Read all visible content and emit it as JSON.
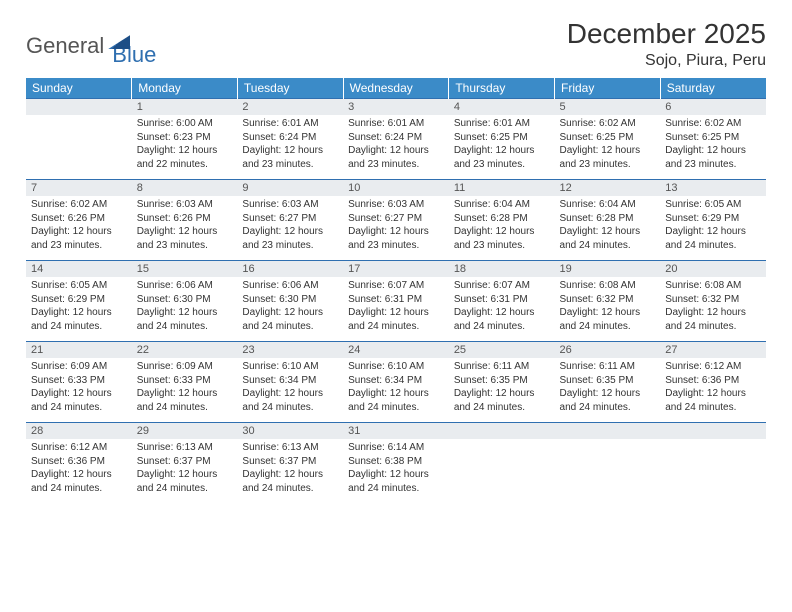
{
  "logo": {
    "part1": "General",
    "part2": "Blue"
  },
  "title": "December 2025",
  "location": "Sojo, Piura, Peru",
  "colors": {
    "header_bg": "#3b8bc8",
    "header_text": "#ffffff",
    "daynum_bg": "#e9ecef",
    "border": "#2f6fb0",
    "text": "#333333",
    "logo_blue": "#2f6fb0"
  },
  "typography": {
    "title_fontsize": 28,
    "location_fontsize": 16,
    "dayheader_fontsize": 12,
    "cell_fontsize": 10
  },
  "day_headers": [
    "Sunday",
    "Monday",
    "Tuesday",
    "Wednesday",
    "Thursday",
    "Friday",
    "Saturday"
  ],
  "weeks": [
    [
      {
        "n": "",
        "sr": "",
        "ss": "",
        "dl": ""
      },
      {
        "n": "1",
        "sr": "Sunrise: 6:00 AM",
        "ss": "Sunset: 6:23 PM",
        "dl": "Daylight: 12 hours and 22 minutes."
      },
      {
        "n": "2",
        "sr": "Sunrise: 6:01 AM",
        "ss": "Sunset: 6:24 PM",
        "dl": "Daylight: 12 hours and 23 minutes."
      },
      {
        "n": "3",
        "sr": "Sunrise: 6:01 AM",
        "ss": "Sunset: 6:24 PM",
        "dl": "Daylight: 12 hours and 23 minutes."
      },
      {
        "n": "4",
        "sr": "Sunrise: 6:01 AM",
        "ss": "Sunset: 6:25 PM",
        "dl": "Daylight: 12 hours and 23 minutes."
      },
      {
        "n": "5",
        "sr": "Sunrise: 6:02 AM",
        "ss": "Sunset: 6:25 PM",
        "dl": "Daylight: 12 hours and 23 minutes."
      },
      {
        "n": "6",
        "sr": "Sunrise: 6:02 AM",
        "ss": "Sunset: 6:25 PM",
        "dl": "Daylight: 12 hours and 23 minutes."
      }
    ],
    [
      {
        "n": "7",
        "sr": "Sunrise: 6:02 AM",
        "ss": "Sunset: 6:26 PM",
        "dl": "Daylight: 12 hours and 23 minutes."
      },
      {
        "n": "8",
        "sr": "Sunrise: 6:03 AM",
        "ss": "Sunset: 6:26 PM",
        "dl": "Daylight: 12 hours and 23 minutes."
      },
      {
        "n": "9",
        "sr": "Sunrise: 6:03 AM",
        "ss": "Sunset: 6:27 PM",
        "dl": "Daylight: 12 hours and 23 minutes."
      },
      {
        "n": "10",
        "sr": "Sunrise: 6:03 AM",
        "ss": "Sunset: 6:27 PM",
        "dl": "Daylight: 12 hours and 23 minutes."
      },
      {
        "n": "11",
        "sr": "Sunrise: 6:04 AM",
        "ss": "Sunset: 6:28 PM",
        "dl": "Daylight: 12 hours and 23 minutes."
      },
      {
        "n": "12",
        "sr": "Sunrise: 6:04 AM",
        "ss": "Sunset: 6:28 PM",
        "dl": "Daylight: 12 hours and 24 minutes."
      },
      {
        "n": "13",
        "sr": "Sunrise: 6:05 AM",
        "ss": "Sunset: 6:29 PM",
        "dl": "Daylight: 12 hours and 24 minutes."
      }
    ],
    [
      {
        "n": "14",
        "sr": "Sunrise: 6:05 AM",
        "ss": "Sunset: 6:29 PM",
        "dl": "Daylight: 12 hours and 24 minutes."
      },
      {
        "n": "15",
        "sr": "Sunrise: 6:06 AM",
        "ss": "Sunset: 6:30 PM",
        "dl": "Daylight: 12 hours and 24 minutes."
      },
      {
        "n": "16",
        "sr": "Sunrise: 6:06 AM",
        "ss": "Sunset: 6:30 PM",
        "dl": "Daylight: 12 hours and 24 minutes."
      },
      {
        "n": "17",
        "sr": "Sunrise: 6:07 AM",
        "ss": "Sunset: 6:31 PM",
        "dl": "Daylight: 12 hours and 24 minutes."
      },
      {
        "n": "18",
        "sr": "Sunrise: 6:07 AM",
        "ss": "Sunset: 6:31 PM",
        "dl": "Daylight: 12 hours and 24 minutes."
      },
      {
        "n": "19",
        "sr": "Sunrise: 6:08 AM",
        "ss": "Sunset: 6:32 PM",
        "dl": "Daylight: 12 hours and 24 minutes."
      },
      {
        "n": "20",
        "sr": "Sunrise: 6:08 AM",
        "ss": "Sunset: 6:32 PM",
        "dl": "Daylight: 12 hours and 24 minutes."
      }
    ],
    [
      {
        "n": "21",
        "sr": "Sunrise: 6:09 AM",
        "ss": "Sunset: 6:33 PM",
        "dl": "Daylight: 12 hours and 24 minutes."
      },
      {
        "n": "22",
        "sr": "Sunrise: 6:09 AM",
        "ss": "Sunset: 6:33 PM",
        "dl": "Daylight: 12 hours and 24 minutes."
      },
      {
        "n": "23",
        "sr": "Sunrise: 6:10 AM",
        "ss": "Sunset: 6:34 PM",
        "dl": "Daylight: 12 hours and 24 minutes."
      },
      {
        "n": "24",
        "sr": "Sunrise: 6:10 AM",
        "ss": "Sunset: 6:34 PM",
        "dl": "Daylight: 12 hours and 24 minutes."
      },
      {
        "n": "25",
        "sr": "Sunrise: 6:11 AM",
        "ss": "Sunset: 6:35 PM",
        "dl": "Daylight: 12 hours and 24 minutes."
      },
      {
        "n": "26",
        "sr": "Sunrise: 6:11 AM",
        "ss": "Sunset: 6:35 PM",
        "dl": "Daylight: 12 hours and 24 minutes."
      },
      {
        "n": "27",
        "sr": "Sunrise: 6:12 AM",
        "ss": "Sunset: 6:36 PM",
        "dl": "Daylight: 12 hours and 24 minutes."
      }
    ],
    [
      {
        "n": "28",
        "sr": "Sunrise: 6:12 AM",
        "ss": "Sunset: 6:36 PM",
        "dl": "Daylight: 12 hours and 24 minutes."
      },
      {
        "n": "29",
        "sr": "Sunrise: 6:13 AM",
        "ss": "Sunset: 6:37 PM",
        "dl": "Daylight: 12 hours and 24 minutes."
      },
      {
        "n": "30",
        "sr": "Sunrise: 6:13 AM",
        "ss": "Sunset: 6:37 PM",
        "dl": "Daylight: 12 hours and 24 minutes."
      },
      {
        "n": "31",
        "sr": "Sunrise: 6:14 AM",
        "ss": "Sunset: 6:38 PM",
        "dl": "Daylight: 12 hours and 24 minutes."
      },
      {
        "n": "",
        "sr": "",
        "ss": "",
        "dl": ""
      },
      {
        "n": "",
        "sr": "",
        "ss": "",
        "dl": ""
      },
      {
        "n": "",
        "sr": "",
        "ss": "",
        "dl": ""
      }
    ]
  ]
}
